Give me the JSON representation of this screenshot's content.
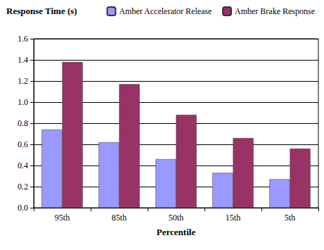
{
  "chart_data": {
    "type": "bar",
    "y_label": "Response Time (s)",
    "x_label": "Percentile",
    "categories": [
      "95th",
      "85th",
      "50th",
      "15th",
      "5th"
    ],
    "series": [
      {
        "name": "Amber Accelerator Release",
        "color": "#9999ff",
        "values": [
          0.74,
          0.62,
          0.46,
          0.33,
          0.27
        ]
      },
      {
        "name": "Amber Brake Response",
        "color": "#993366",
        "values": [
          1.38,
          1.17,
          0.88,
          0.66,
          0.56
        ]
      }
    ],
    "ylim": [
      0,
      1.6
    ],
    "yticks": [
      {
        "value": 0,
        "label": "0.0"
      },
      0.2,
      0.4,
      0.6,
      0.8,
      {
        "value": 1,
        "label": "1.0"
      },
      1.2,
      1.4,
      1.6
    ],
    "grid": true,
    "legend": "upper right"
  }
}
